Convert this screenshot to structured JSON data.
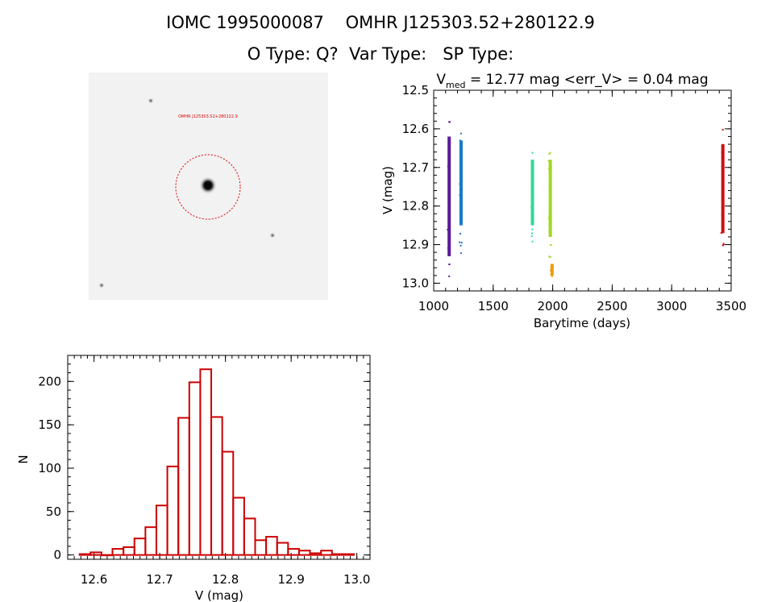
{
  "header": {
    "line1": "IOMC 1995000087    OMHR J125303.52+280122.9",
    "line2": "O Type: Q?  Var Type:   SP Type:"
  },
  "stamp": {
    "source_label": "OMHR J125303.52+280122.9",
    "ring_color": "#dd0000"
  },
  "chart_data": [
    {
      "type": "scatter",
      "title_parts": {
        "prefix": "V",
        "subscript": "med",
        "suffix": " = 12.77 mag <err_V> = 0.04 mag"
      },
      "xlabel": "Barytime (days)",
      "ylabel": "V (mag)",
      "xlim": [
        1000,
        3500
      ],
      "ylim": [
        13.02,
        12.5
      ],
      "y_inverted": true,
      "xticks": [
        "1000",
        "1500",
        "2000",
        "2500",
        "3000",
        "3500"
      ],
      "yticks": [
        "12.5",
        "12.6",
        "12.7",
        "12.8",
        "12.9",
        "13.0"
      ],
      "series": [
        {
          "x": 1130,
          "color": "#5a1a9a",
          "y_min": 12.58,
          "y_max": 12.98,
          "core_min": 12.62,
          "core_max": 12.93
        },
        {
          "x": 1230,
          "color": "#1a78c8",
          "y_min": 12.61,
          "y_max": 12.92,
          "core_min": 12.63,
          "core_max": 12.85
        },
        {
          "x": 1830,
          "color": "#30d898",
          "y_min": 12.66,
          "y_max": 12.89,
          "core_min": 12.68,
          "core_max": 12.85
        },
        {
          "x": 1980,
          "color": "#a0d820",
          "y_min": 12.66,
          "y_max": 12.93,
          "core_min": 12.68,
          "core_max": 12.88
        },
        {
          "x": 1995,
          "color": "#e8a010",
          "y_min": 12.95,
          "y_max": 12.98,
          "core_min": 12.95,
          "core_max": 12.98
        },
        {
          "x": 3430,
          "color": "#cc1010",
          "y_min": 12.6,
          "y_max": 12.9,
          "core_min": 12.64,
          "core_max": 12.87
        }
      ],
      "grid": false
    },
    {
      "type": "bar",
      "subtype": "histogram",
      "xlabel": "V (mag)",
      "ylabel": "N",
      "xlim": [
        12.56,
        13.02
      ],
      "ylim": [
        -5,
        230
      ],
      "xticks": [
        "12.6",
        "12.7",
        "12.8",
        "12.9",
        "13.0"
      ],
      "yticks": [
        "0",
        "50",
        "100",
        "150",
        "200"
      ],
      "bin_width": 0.0167,
      "bin_start": 12.578,
      "values": [
        1,
        3,
        0,
        7,
        9,
        19,
        32,
        57,
        102,
        158,
        199,
        214,
        159,
        119,
        66,
        42,
        17,
        21,
        14,
        7,
        5,
        2,
        5,
        1,
        1
      ],
      "bar_color": "#cc0000",
      "grid": false
    }
  ]
}
